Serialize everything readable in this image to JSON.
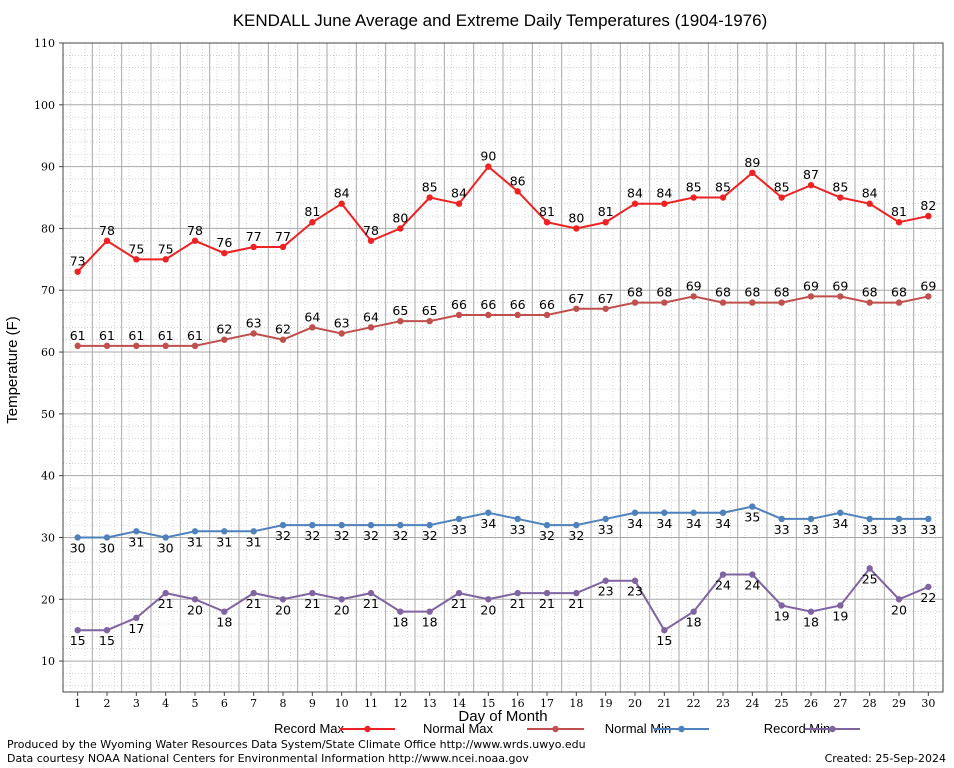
{
  "chart_data": {
    "type": "line",
    "title": "KENDALL June Average and Extreme Daily Temperatures (1904-1976)",
    "xlabel": "Day of Month",
    "ylabel": "Temperature (F)",
    "ylim": [
      5,
      110
    ],
    "yticks": [
      10,
      20,
      30,
      40,
      50,
      60,
      70,
      80,
      90,
      100,
      110
    ],
    "x": [
      1,
      2,
      3,
      4,
      5,
      6,
      7,
      8,
      9,
      10,
      11,
      12,
      13,
      14,
      15,
      16,
      17,
      18,
      19,
      20,
      21,
      22,
      23,
      24,
      25,
      26,
      27,
      28,
      29,
      30
    ],
    "grid": true,
    "legend_position": "bottom",
    "series": [
      {
        "name": "Record Max",
        "color": "#ee2222",
        "label_pos": "above",
        "values": [
          73,
          78,
          75,
          75,
          78,
          76,
          77,
          77,
          81,
          84,
          78,
          80,
          85,
          84,
          90,
          86,
          81,
          80,
          81,
          84,
          84,
          85,
          85,
          89,
          85,
          87,
          85,
          84,
          81,
          82
        ]
      },
      {
        "name": "Normal Max",
        "color": "#c0504d",
        "label_pos": "above",
        "values": [
          61,
          61,
          61,
          61,
          61,
          62,
          63,
          62,
          64,
          63,
          64,
          65,
          65,
          66,
          66,
          66,
          66,
          67,
          67,
          68,
          68,
          69,
          68,
          68,
          68,
          69,
          69,
          68,
          68,
          69
        ]
      },
      {
        "name": "Normal Min",
        "color": "#4f81bd",
        "label_pos": "below",
        "values": [
          30,
          30,
          31,
          30,
          31,
          31,
          31,
          32,
          32,
          32,
          32,
          32,
          32,
          33,
          34,
          33,
          32,
          32,
          33,
          34,
          34,
          34,
          34,
          35,
          33,
          33,
          34,
          33,
          33,
          33
        ]
      },
      {
        "name": "Record Min",
        "color": "#8064a2",
        "label_pos": "below",
        "values": [
          15,
          15,
          17,
          21,
          20,
          18,
          21,
          20,
          21,
          20,
          21,
          18,
          18,
          21,
          20,
          21,
          21,
          21,
          23,
          23,
          15,
          18,
          24,
          24,
          19,
          18,
          19,
          25,
          20,
          22
        ]
      }
    ]
  },
  "footer": {
    "produced_by": "Produced by the Wyoming Water Resources Data System/State Climate Office http://www.wrds.uwyo.edu",
    "courtesy": "Data courtesy NOAA National Centers for Environmental Information http://www.ncei.noaa.gov",
    "created": "Created:  25-Sep-2024"
  }
}
